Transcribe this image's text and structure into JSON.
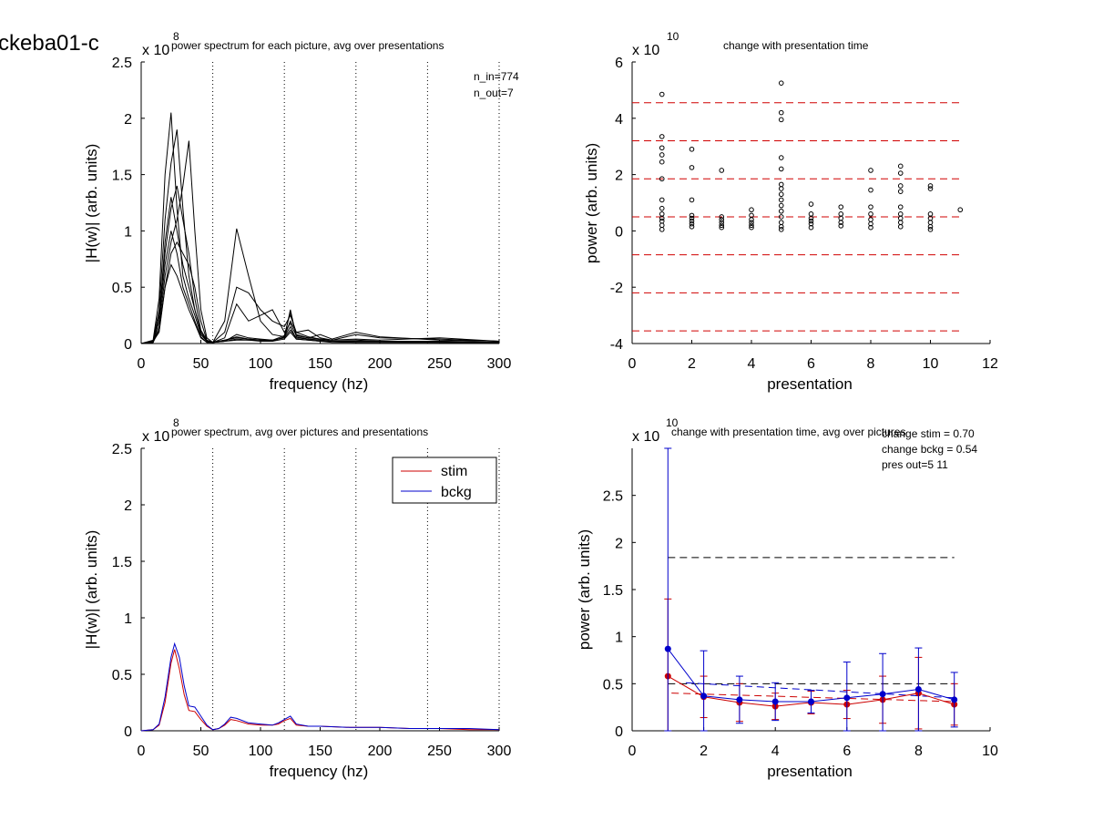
{
  "figure_title": "ckeba01-c",
  "chart_data": [
    {
      "id": "p1",
      "type": "line",
      "title": "power spectrum for each picture, avg over presentations",
      "xlabel": "frequency (hz)",
      "ylabel": "|H(w)| (arb. units)",
      "exponent": "8",
      "xlim": [
        0,
        300
      ],
      "ylim": [
        0,
        2.5
      ],
      "xticks": [
        0,
        50,
        100,
        150,
        200,
        250,
        300
      ],
      "yticks": [
        0,
        0.5,
        1,
        1.5,
        2,
        2.5
      ],
      "vlines": [
        60,
        120,
        180,
        240,
        300
      ],
      "annotations": [
        "n_in=774",
        "n_out=7"
      ],
      "series_color": "#000000",
      "series": [
        {
          "x": [
            0,
            10,
            15,
            20,
            25,
            30,
            35,
            40,
            45,
            50,
            55,
            60,
            70,
            80,
            90,
            100,
            110,
            120,
            125,
            130,
            140,
            150,
            160,
            180,
            200,
            250,
            300
          ],
          "y": [
            0,
            0.02,
            0.2,
            0.9,
            1.3,
            1.0,
            0.7,
            0.5,
            0.3,
            0.1,
            0.02,
            0.01,
            0.02,
            0.04,
            0.03,
            0.03,
            0.03,
            0.05,
            0.12,
            0.05,
            0.04,
            0.03,
            0.02,
            0.02,
            0.02,
            0.02,
            0.01
          ]
        },
        {
          "x": [
            0,
            10,
            15,
            20,
            25,
            30,
            35,
            40,
            45,
            50,
            55,
            60,
            70,
            80,
            90,
            100,
            110,
            120,
            125,
            130,
            140,
            150,
            160,
            180,
            200,
            250,
            300
          ],
          "y": [
            0,
            0.03,
            0.4,
            1.5,
            2.05,
            1.2,
            0.6,
            0.4,
            0.25,
            0.08,
            0.02,
            0.01,
            0.03,
            0.05,
            0.04,
            0.03,
            0.02,
            0.06,
            0.15,
            0.04,
            0.03,
            0.02,
            0.02,
            0.01,
            0.01,
            0.01,
            0.01
          ]
        },
        {
          "x": [
            0,
            10,
            15,
            20,
            25,
            30,
            35,
            40,
            45,
            50,
            55,
            60,
            70,
            80,
            90,
            100,
            110,
            120,
            125,
            130,
            140,
            150,
            160,
            180,
            200,
            250,
            300
          ],
          "y": [
            0,
            0.01,
            0.15,
            0.6,
            0.9,
            1.1,
            1.4,
            1.8,
            1.0,
            0.3,
            0.05,
            0.01,
            0.02,
            0.03,
            0.03,
            0.02,
            0.02,
            0.04,
            0.1,
            0.04,
            0.03,
            0.02,
            0.01,
            0.01,
            0.01,
            0.01,
            0.01
          ]
        },
        {
          "x": [
            0,
            10,
            15,
            20,
            25,
            30,
            35,
            40,
            45,
            50,
            55,
            60,
            70,
            80,
            90,
            100,
            110,
            120,
            125,
            130,
            140,
            150,
            160,
            180,
            200,
            250,
            300
          ],
          "y": [
            0,
            0.02,
            0.3,
            1.1,
            1.6,
            1.9,
            1.2,
            0.6,
            0.3,
            0.1,
            0.02,
            0.01,
            0.03,
            0.06,
            0.04,
            0.03,
            0.03,
            0.05,
            0.3,
            0.06,
            0.04,
            0.03,
            0.02,
            0.02,
            0.02,
            0.01,
            0.01
          ]
        },
        {
          "x": [
            0,
            10,
            15,
            20,
            25,
            30,
            35,
            40,
            45,
            50,
            55,
            60,
            70,
            80,
            90,
            100,
            110,
            120,
            125,
            130,
            140,
            150,
            160,
            180,
            200,
            250,
            300
          ],
          "y": [
            0,
            0.02,
            0.1,
            0.5,
            0.8,
            0.9,
            0.8,
            0.7,
            0.5,
            0.2,
            0.03,
            0.01,
            0.2,
            1.02,
            0.6,
            0.2,
            0.08,
            0.06,
            0.2,
            0.1,
            0.12,
            0.05,
            0.03,
            0.08,
            0.05,
            0.04,
            0.02
          ]
        },
        {
          "x": [
            0,
            10,
            15,
            20,
            25,
            30,
            35,
            40,
            45,
            50,
            55,
            60,
            70,
            80,
            90,
            100,
            110,
            120,
            125,
            130,
            140,
            150,
            160,
            180,
            200,
            250,
            300
          ],
          "y": [
            0,
            0.01,
            0.2,
            0.7,
            1.0,
            0.8,
            0.5,
            0.35,
            0.2,
            0.06,
            0.01,
            0.01,
            0.1,
            0.5,
            0.45,
            0.3,
            0.2,
            0.15,
            0.25,
            0.1,
            0.06,
            0.04,
            0.03,
            0.03,
            0.02,
            0.02,
            0.01
          ]
        },
        {
          "x": [
            0,
            10,
            15,
            20,
            25,
            30,
            35,
            40,
            45,
            50,
            55,
            60,
            70,
            80,
            90,
            100,
            110,
            120,
            125,
            130,
            140,
            150,
            160,
            180,
            200,
            250,
            300
          ],
          "y": [
            0,
            0.02,
            0.25,
            0.8,
            1.2,
            1.4,
            1.1,
            0.8,
            0.4,
            0.12,
            0.03,
            0.01,
            0.05,
            0.35,
            0.2,
            0.25,
            0.3,
            0.1,
            0.18,
            0.07,
            0.05,
            0.08,
            0.04,
            0.1,
            0.06,
            0.03,
            0.02
          ]
        },
        {
          "x": [
            0,
            10,
            15,
            20,
            25,
            30,
            35,
            40,
            45,
            50,
            55,
            60,
            70,
            80,
            90,
            100,
            110,
            120,
            125,
            130,
            140,
            150,
            160,
            180,
            200,
            250,
            300
          ],
          "y": [
            0,
            0.01,
            0.12,
            0.5,
            0.7,
            0.6,
            0.45,
            0.3,
            0.18,
            0.05,
            0.01,
            0.01,
            0.02,
            0.08,
            0.05,
            0.04,
            0.03,
            0.07,
            0.28,
            0.08,
            0.05,
            0.04,
            0.03,
            0.04,
            0.03,
            0.05,
            0.02
          ]
        }
      ]
    },
    {
      "id": "p2",
      "type": "scatter",
      "title": "change with presentation time",
      "xlabel": "presentation",
      "ylabel": "power (arb. units)",
      "exponent": "10",
      "xlim": [
        0,
        12
      ],
      "ylim": [
        -4,
        6
      ],
      "xticks": [
        0,
        2,
        4,
        6,
        8,
        10,
        12
      ],
      "yticks": [
        -4,
        -2,
        0,
        2,
        4,
        6
      ],
      "hlines": [
        4.55,
        3.2,
        1.85,
        0.5,
        -0.85,
        -2.2,
        -3.55
      ],
      "hline_color": "#d00000",
      "points": [
        {
          "x": 1,
          "y": 4.85
        },
        {
          "x": 1,
          "y": 3.35
        },
        {
          "x": 1,
          "y": 2.95
        },
        {
          "x": 1,
          "y": 2.7
        },
        {
          "x": 1,
          "y": 2.45
        },
        {
          "x": 1,
          "y": 1.85
        },
        {
          "x": 1,
          "y": 1.1
        },
        {
          "x": 1,
          "y": 0.8
        },
        {
          "x": 1,
          "y": 0.6
        },
        {
          "x": 1,
          "y": 0.45
        },
        {
          "x": 1,
          "y": 0.35
        },
        {
          "x": 1,
          "y": 0.2
        },
        {
          "x": 1,
          "y": 0.05
        },
        {
          "x": 2,
          "y": 2.9
        },
        {
          "x": 2,
          "y": 2.25
        },
        {
          "x": 2,
          "y": 1.1
        },
        {
          "x": 2,
          "y": 0.55
        },
        {
          "x": 2,
          "y": 0.45
        },
        {
          "x": 2,
          "y": 0.35
        },
        {
          "x": 2,
          "y": 0.25
        },
        {
          "x": 2,
          "y": 0.15
        },
        {
          "x": 3,
          "y": 2.15
        },
        {
          "x": 3,
          "y": 0.5
        },
        {
          "x": 3,
          "y": 0.4
        },
        {
          "x": 3,
          "y": 0.3
        },
        {
          "x": 3,
          "y": 0.2
        },
        {
          "x": 3,
          "y": 0.12
        },
        {
          "x": 4,
          "y": 0.75
        },
        {
          "x": 4,
          "y": 0.55
        },
        {
          "x": 4,
          "y": 0.4
        },
        {
          "x": 4,
          "y": 0.3
        },
        {
          "x": 4,
          "y": 0.2
        },
        {
          "x": 4,
          "y": 0.12
        },
        {
          "x": 5,
          "y": 5.25
        },
        {
          "x": 5,
          "y": 4.2
        },
        {
          "x": 5,
          "y": 3.95
        },
        {
          "x": 5,
          "y": 2.6
        },
        {
          "x": 5,
          "y": 2.2
        },
        {
          "x": 5,
          "y": 1.65
        },
        {
          "x": 5,
          "y": 1.5
        },
        {
          "x": 5,
          "y": 1.3
        },
        {
          "x": 5,
          "y": 1.1
        },
        {
          "x": 5,
          "y": 0.9
        },
        {
          "x": 5,
          "y": 0.7
        },
        {
          "x": 5,
          "y": 0.5
        },
        {
          "x": 5,
          "y": 0.3
        },
        {
          "x": 5,
          "y": 0.15
        },
        {
          "x": 5,
          "y": 0.05
        },
        {
          "x": 6,
          "y": 0.95
        },
        {
          "x": 6,
          "y": 0.6
        },
        {
          "x": 6,
          "y": 0.45
        },
        {
          "x": 6,
          "y": 0.35
        },
        {
          "x": 6,
          "y": 0.25
        },
        {
          "x": 6,
          "y": 0.12
        },
        {
          "x": 7,
          "y": 0.85
        },
        {
          "x": 7,
          "y": 0.6
        },
        {
          "x": 7,
          "y": 0.45
        },
        {
          "x": 7,
          "y": 0.3
        },
        {
          "x": 7,
          "y": 0.18
        },
        {
          "x": 8,
          "y": 2.15
        },
        {
          "x": 8,
          "y": 1.45
        },
        {
          "x": 8,
          "y": 0.85
        },
        {
          "x": 8,
          "y": 0.6
        },
        {
          "x": 8,
          "y": 0.4
        },
        {
          "x": 8,
          "y": 0.25
        },
        {
          "x": 8,
          "y": 0.12
        },
        {
          "x": 9,
          "y": 2.3
        },
        {
          "x": 9,
          "y": 2.05
        },
        {
          "x": 9,
          "y": 1.6
        },
        {
          "x": 9,
          "y": 1.4
        },
        {
          "x": 9,
          "y": 0.85
        },
        {
          "x": 9,
          "y": 0.6
        },
        {
          "x": 9,
          "y": 0.45
        },
        {
          "x": 9,
          "y": 0.3
        },
        {
          "x": 9,
          "y": 0.15
        },
        {
          "x": 10,
          "y": 1.6
        },
        {
          "x": 10,
          "y": 1.5
        },
        {
          "x": 10,
          "y": 0.6
        },
        {
          "x": 10,
          "y": 0.45
        },
        {
          "x": 10,
          "y": 0.3
        },
        {
          "x": 10,
          "y": 0.15
        },
        {
          "x": 10,
          "y": 0.05
        },
        {
          "x": 11,
          "y": 0.75
        }
      ]
    },
    {
      "id": "p3",
      "type": "line",
      "title": "power spectrum, avg over pictures and presentations",
      "xlabel": "frequency (hz)",
      "ylabel": "|H(w)| (arb. units)",
      "exponent": "8",
      "xlim": [
        0,
        300
      ],
      "ylim": [
        0,
        2.5
      ],
      "xticks": [
        0,
        50,
        100,
        150,
        200,
        250,
        300
      ],
      "yticks": [
        0,
        0.5,
        1,
        1.5,
        2,
        2.5
      ],
      "vlines": [
        60,
        120,
        180,
        240,
        300
      ],
      "legend": "top-right",
      "series": [
        {
          "name": "stim",
          "color": "#cc0000",
          "x": [
            0,
            10,
            15,
            20,
            25,
            28,
            32,
            36,
            40,
            45,
            50,
            55,
            60,
            65,
            70,
            75,
            80,
            90,
            100,
            110,
            115,
            120,
            125,
            130,
            140,
            150,
            175,
            200,
            225,
            250,
            275,
            300
          ],
          "y": [
            0,
            0.01,
            0.05,
            0.25,
            0.6,
            0.72,
            0.55,
            0.32,
            0.18,
            0.17,
            0.1,
            0.04,
            0.01,
            0.02,
            0.05,
            0.1,
            0.09,
            0.06,
            0.05,
            0.05,
            0.06,
            0.09,
            0.11,
            0.05,
            0.04,
            0.04,
            0.03,
            0.03,
            0.02,
            0.02,
            0.01,
            0.01
          ]
        },
        {
          "name": "bckg",
          "color": "#0000cc",
          "x": [
            0,
            10,
            15,
            20,
            25,
            28,
            32,
            36,
            40,
            45,
            50,
            55,
            60,
            65,
            70,
            75,
            80,
            90,
            100,
            110,
            115,
            120,
            125,
            130,
            140,
            150,
            175,
            200,
            225,
            250,
            275,
            300
          ],
          "y": [
            0,
            0.01,
            0.06,
            0.3,
            0.65,
            0.77,
            0.65,
            0.4,
            0.22,
            0.21,
            0.13,
            0.05,
            0.01,
            0.02,
            0.06,
            0.12,
            0.11,
            0.07,
            0.06,
            0.05,
            0.07,
            0.1,
            0.13,
            0.06,
            0.04,
            0.04,
            0.03,
            0.03,
            0.02,
            0.02,
            0.02,
            0.01
          ]
        }
      ]
    },
    {
      "id": "p4",
      "type": "line",
      "title": "change with presentation time, avg over pictures",
      "xlabel": "presentation",
      "ylabel": "power (arb. units)",
      "exponent": "10",
      "xlim": [
        0,
        10
      ],
      "ylim": [
        0,
        3
      ],
      "xticks": [
        0,
        2,
        4,
        6,
        8,
        10
      ],
      "yticks": [
        0,
        0.5,
        1,
        1.5,
        2,
        2.5
      ],
      "annotations": [
        "change stim = 0.70",
        "change bckg = 0.54",
        "pres out=5 11"
      ],
      "hlines": [
        {
          "y": 1.84,
          "x0": 1,
          "x1": 9,
          "color": "#000000"
        },
        {
          "y": 0.5,
          "x0": 1,
          "x1": 9,
          "color": "#000000"
        }
      ],
      "trend_lines": [
        {
          "color": "#cc0000",
          "x0": 1.1,
          "y0": 0.4,
          "x1": 9,
          "y1": 0.31
        },
        {
          "color": "#0000cc",
          "x0": 1.5,
          "y0": 0.51,
          "x1": 9,
          "y1": 0.35
        }
      ],
      "series": [
        {
          "name": "stim",
          "color": "#cc0000",
          "x": [
            1,
            2,
            3,
            4,
            5,
            6,
            7,
            8,
            9
          ],
          "y": [
            0.58,
            0.36,
            0.3,
            0.26,
            0.3,
            0.28,
            0.33,
            0.4,
            0.28
          ],
          "err": [
            0.82,
            0.22,
            0.2,
            0.14,
            0.12,
            0.15,
            0.25,
            0.38,
            0.22
          ]
        },
        {
          "name": "bckg",
          "color": "#0000cc",
          "x": [
            1,
            2,
            3,
            4,
            5,
            6,
            7,
            8,
            9
          ],
          "y": [
            0.87,
            0.37,
            0.33,
            0.31,
            0.31,
            0.35,
            0.39,
            0.44,
            0.33
          ],
          "err": [
            2.2,
            0.48,
            0.25,
            0.2,
            0.12,
            0.38,
            0.43,
            0.44,
            0.29
          ]
        }
      ]
    }
  ]
}
